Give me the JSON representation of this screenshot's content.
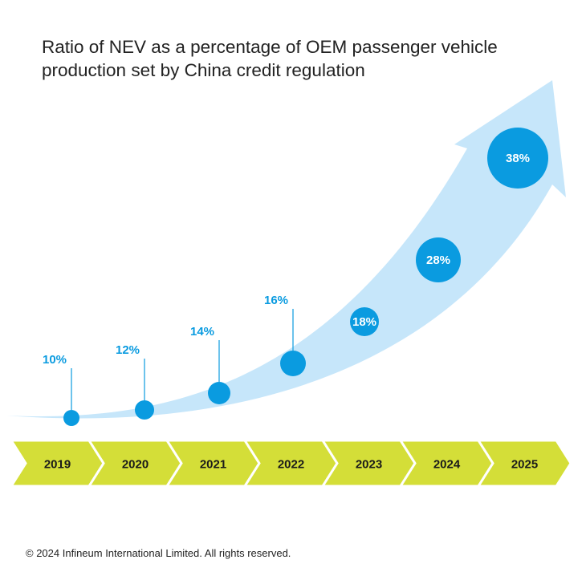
{
  "title_lines": [
    "Ratio of NEV as a percentage of OEM passenger vehicle",
    "production set by China credit regulation"
  ],
  "footer": "© 2024 Infineum International Limited. All rights reserved.",
  "colors": {
    "arrow": "#c6e6fa",
    "bubble": "#0a9be0",
    "label": "#0a9be0",
    "timeline": "#d4de38",
    "year_text": "#1a1a1a"
  },
  "chart_data": {
    "type": "bubble-timeline",
    "title": "Ratio of NEV as a percentage of OEM passenger vehicle production set by China credit regulation",
    "categories": [
      "2019",
      "2020",
      "2021",
      "2022",
      "2023",
      "2024",
      "2025"
    ],
    "values": [
      10,
      12,
      14,
      16,
      18,
      28,
      38
    ],
    "labels": [
      "10%",
      "12%",
      "14%",
      "16%",
      "18%",
      "28%",
      "38%"
    ],
    "unit": "%"
  }
}
